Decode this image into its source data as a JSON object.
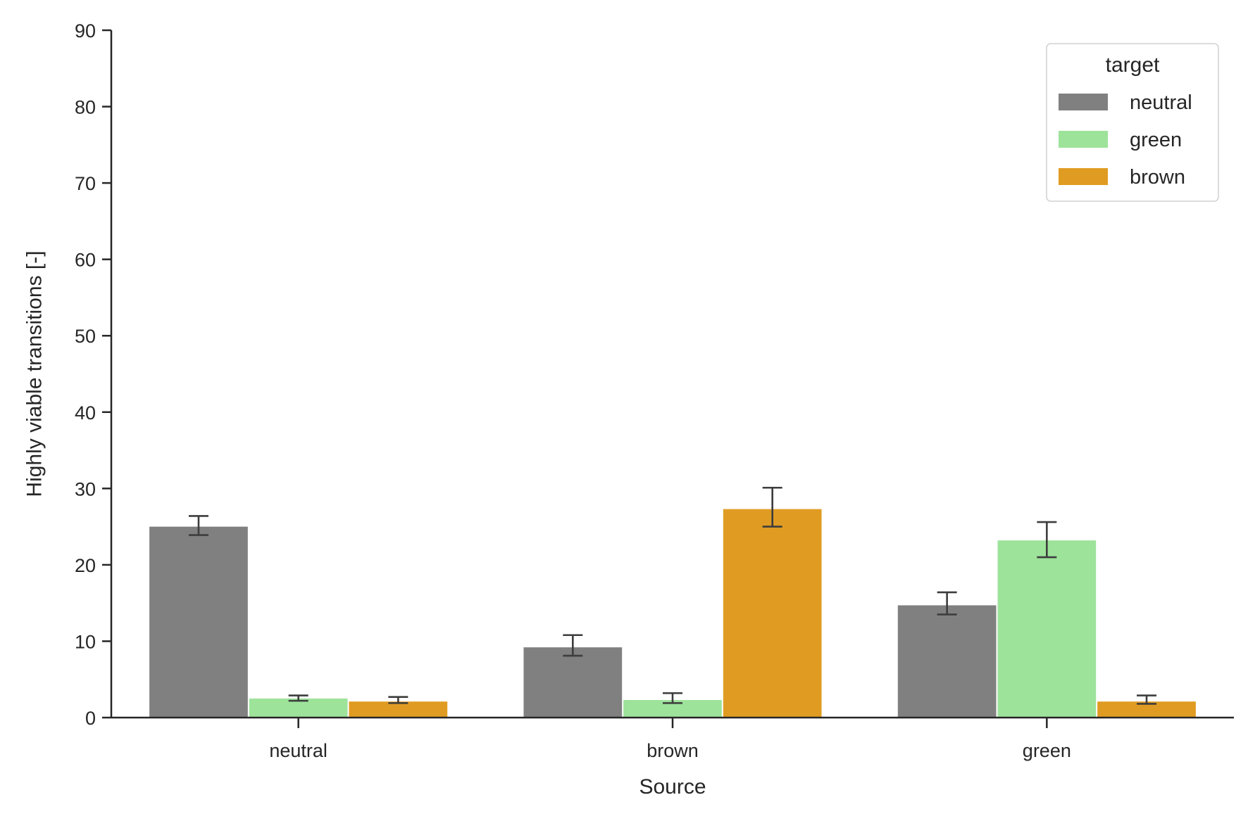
{
  "chart_data": {
    "type": "bar",
    "xlabel": "Source",
    "ylabel": "Highly viable transitions [-]",
    "ylim": [
      0,
      90
    ],
    "yticks": [
      0,
      10,
      20,
      30,
      40,
      50,
      60,
      70,
      80,
      90
    ],
    "categories": [
      "neutral",
      "brown",
      "green"
    ],
    "legend": {
      "title": "target",
      "placement": "top-right"
    },
    "grid": false,
    "series": [
      {
        "name": "neutral",
        "color": "#808080",
        "values": [
          25.0,
          9.2,
          14.7
        ],
        "err_low": [
          23.9,
          8.1,
          13.5
        ],
        "err_high": [
          26.4,
          10.8,
          16.4
        ]
      },
      {
        "name": "green",
        "color": "#9de39a",
        "values": [
          2.5,
          2.3,
          23.2
        ],
        "err_low": [
          2.2,
          1.9,
          21.0
        ],
        "err_high": [
          2.9,
          3.2,
          25.6
        ]
      },
      {
        "name": "brown",
        "color": "#e09c22",
        "values": [
          2.1,
          27.3,
          2.1
        ],
        "err_low": [
          1.9,
          25.0,
          1.8
        ],
        "err_high": [
          2.7,
          30.1,
          2.9
        ]
      }
    ]
  }
}
